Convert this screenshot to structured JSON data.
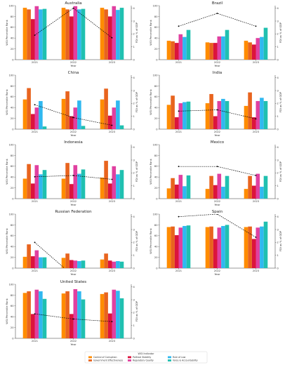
{
  "legend": {
    "title": "WGI Indicator",
    "entries": [
      {
        "name": "Control of Corruption",
        "color": "#ff8c00"
      },
      {
        "name": "Government Effectiveness",
        "color": "#e8641e"
      },
      {
        "name": "Political Stability",
        "color": "#dc143c"
      },
      {
        "name": "Regulatory Quality",
        "color": "#e040a0"
      },
      {
        "name": "Rule of Law",
        "color": "#30b8f0"
      },
      {
        "name": "Voice & Accountability",
        "color": "#20c0b0"
      }
    ]
  },
  "chart_data": [
    {
      "type": "bar",
      "title": "Australia",
      "categories": [
        "2021",
        "2022",
        "2023"
      ],
      "xlabel": "Year",
      "ylabel": "WGI Percentile Rank",
      "y2label": "FDI as % of GDP",
      "ylim": [
        0,
        100
      ],
      "y2lim": [
        0,
        4.2
      ],
      "yticks": [
        0,
        20,
        40,
        60,
        80,
        100
      ],
      "y2ticks": [
        0,
        1,
        2,
        3,
        4
      ],
      "series": [
        {
          "name": "Control of Corruption",
          "values": [
            96,
            96,
            96
          ]
        },
        {
          "name": "Government Effectiveness",
          "values": [
            93,
            93,
            93
          ]
        },
        {
          "name": "Political Stability",
          "values": [
            75,
            80,
            80
          ]
        },
        {
          "name": "Regulatory Quality",
          "values": [
            99,
            99,
            99
          ]
        },
        {
          "name": "Rule of Law",
          "values": [
            93,
            93,
            92
          ]
        },
        {
          "name": "Voice & Accountability",
          "values": [
            94,
            94,
            96
          ]
        }
      ],
      "fdi": [
        1.9,
        4.0,
        1.7
      ]
    },
    {
      "type": "bar",
      "title": "Brazil",
      "categories": [
        "2021",
        "2022",
        "2023"
      ],
      "xlabel": "Year",
      "ylabel": "WGI Percentile Rank",
      "y2label": "FDI as % of GDP",
      "ylim": [
        0,
        100
      ],
      "y2lim": [
        0,
        4.2
      ],
      "yticks": [
        0,
        20,
        40,
        60,
        80,
        100
      ],
      "y2ticks": [
        0,
        1,
        2,
        3,
        4
      ],
      "series": [
        {
          "name": "Control of Corruption",
          "values": [
            35,
            32,
            35
          ]
        },
        {
          "name": "Government Effectiveness",
          "values": [
            34,
            31,
            32
          ]
        },
        {
          "name": "Political Stability",
          "values": [
            31,
            31,
            28
          ]
        },
        {
          "name": "Regulatory Quality",
          "values": [
            47,
            43,
            40
          ]
        },
        {
          "name": "Rule of Law",
          "values": [
            42,
            43,
            42
          ]
        },
        {
          "name": "Voice & Accountability",
          "values": [
            55,
            55,
            59
          ]
        }
      ],
      "fdi": [
        2.6,
        3.6,
        2.6
      ]
    },
    {
      "type": "bar",
      "title": "China",
      "categories": [
        "2021",
        "2022",
        "2023"
      ],
      "xlabel": "Year",
      "ylabel": "WGI Percentile Rank",
      "y2label": "FDI as % of GDP",
      "ylim": [
        0,
        100
      ],
      "y2lim": [
        0,
        4.2
      ],
      "yticks": [
        0,
        20,
        40,
        60,
        80,
        100
      ],
      "y2ticks": [
        0,
        1,
        2,
        3,
        4
      ],
      "series": [
        {
          "name": "Control of Corruption",
          "values": [
            55,
            56,
            55
          ]
        },
        {
          "name": "Government Effectiveness",
          "values": [
            76,
            70,
            75
          ]
        },
        {
          "name": "Political Stability",
          "values": [
            28,
            24,
            25
          ]
        },
        {
          "name": "Regulatory Quality",
          "values": [
            40,
            40,
            40
          ]
        },
        {
          "name": "Rule of Law",
          "values": [
            52,
            53,
            53
          ]
        },
        {
          "name": "Voice & Accountability",
          "values": [
            5,
            6,
            7
          ]
        }
      ],
      "fdi": [
        1.9,
        0.9,
        0.3
      ]
    },
    {
      "type": "bar",
      "title": "India",
      "categories": [
        "2021",
        "2022",
        "2023"
      ],
      "xlabel": "Year",
      "ylabel": "WGI Percentile Rank",
      "y2label": "FDI as % of GDP",
      "ylim": [
        0,
        100
      ],
      "y2lim": [
        0,
        4.2
      ],
      "yticks": [
        0,
        20,
        40,
        60,
        80,
        100
      ],
      "y2ticks": [
        0,
        1,
        2,
        3,
        4
      ],
      "series": [
        {
          "name": "Control of Corruption",
          "values": [
            45,
            48,
            43
          ]
        },
        {
          "name": "Government Effectiveness",
          "values": [
            62,
            65,
            68
          ]
        },
        {
          "name": "Political Stability",
          "values": [
            22,
            24,
            22
          ]
        },
        {
          "name": "Regulatory Quality",
          "values": [
            48,
            52,
            52
          ]
        },
        {
          "name": "Rule of Law",
          "values": [
            50,
            56,
            58
          ]
        },
        {
          "name": "Voice & Accountability",
          "values": [
            51,
            52,
            52
          ]
        }
      ],
      "fdi": [
        1.4,
        1.5,
        0.8
      ]
    },
    {
      "type": "bar",
      "title": "Indonesia",
      "categories": [
        "2021",
        "2022",
        "2023"
      ],
      "xlabel": "Year",
      "ylabel": "WGI Percentile Rank",
      "y2label": "FDI as % of GDP",
      "ylim": [
        0,
        100
      ],
      "y2lim": [
        0,
        4.2
      ],
      "yticks": [
        0,
        20,
        40,
        60,
        80,
        100
      ],
      "y2ticks": [
        0,
        1,
        2,
        3,
        4
      ],
      "series": [
        {
          "name": "Control of Corruption",
          "values": [
            37,
            37,
            39
          ]
        },
        {
          "name": "Government Effectiveness",
          "values": [
            64,
            66,
            70
          ]
        },
        {
          "name": "Political Stability",
          "values": [
            28,
            27,
            28
          ]
        },
        {
          "name": "Regulatory Quality",
          "values": [
            62,
            62,
            60
          ]
        },
        {
          "name": "Rule of Law",
          "values": [
            45,
            46,
            45
          ]
        },
        {
          "name": "Voice & Accountability",
          "values": [
            53,
            54,
            53
          ]
        }
      ],
      "fdi": [
        1.7,
        1.8,
        1.5
      ]
    },
    {
      "type": "bar",
      "title": "Mexico",
      "categories": [
        "2021",
        "2022",
        "2023"
      ],
      "xlabel": "Year",
      "ylabel": "WGI Percentile Rank",
      "y2label": "FDI as % of GDP",
      "ylim": [
        0,
        100
      ],
      "y2lim": [
        0,
        4.2
      ],
      "yticks": [
        0,
        20,
        40,
        60,
        80,
        100
      ],
      "y2ticks": [
        0,
        1,
        2,
        3,
        4
      ],
      "series": [
        {
          "name": "Control of Corruption",
          "values": [
            19,
            18,
            18
          ]
        },
        {
          "name": "Government Effectiveness",
          "values": [
            38,
            42,
            42
          ]
        },
        {
          "name": "Political Stability",
          "values": [
            26,
            25,
            24
          ]
        },
        {
          "name": "Regulatory Quality",
          "values": [
            44,
            46,
            46
          ]
        },
        {
          "name": "Rule of Law",
          "values": [
            23,
            22,
            22
          ]
        },
        {
          "name": "Voice & Accountability",
          "values": [
            43,
            42,
            42
          ]
        }
      ],
      "fdi": [
        2.5,
        2.5,
        1.8
      ]
    },
    {
      "type": "bar",
      "title": "Russian Federation",
      "categories": [
        "2021",
        "2022",
        "2023"
      ],
      "xlabel": "Year",
      "ylabel": "WGI Percentile Rank",
      "y2label": "FDI as % of GDP",
      "ylim": [
        0,
        100
      ],
      "y2lim": [
        0,
        4.2
      ],
      "yticks": [
        0,
        20,
        40,
        60,
        80,
        100
      ],
      "y2ticks": [
        0,
        1,
        2,
        3,
        4
      ],
      "series": [
        {
          "name": "Control of Corruption",
          "values": [
            21,
            19,
            16
          ]
        },
        {
          "name": "Government Effectiveness",
          "values": [
            44,
            27,
            27
          ]
        },
        {
          "name": "Political Stability",
          "values": [
            22,
            15,
            14
          ]
        },
        {
          "name": "Regulatory Quality",
          "values": [
            33,
            14,
            12
          ]
        },
        {
          "name": "Rule of Law",
          "values": [
            20,
            13,
            13
          ]
        },
        {
          "name": "Voice & Accountability",
          "values": [
            20,
            14,
            12
          ]
        }
      ],
      "fdi": [
        2.0,
        -0.6,
        -0.6
      ]
    },
    {
      "type": "bar",
      "title": "Spain",
      "categories": [
        "2021",
        "2022",
        "2023"
      ],
      "xlabel": "Year",
      "ylabel": "WGI Percentile Rank",
      "y2label": "FDI as % of GDP",
      "ylim": [
        0,
        100
      ],
      "y2lim": [
        0,
        4.2
      ],
      "yticks": [
        0,
        20,
        40,
        60,
        80,
        100
      ],
      "y2ticks": [
        0,
        1,
        2,
        3,
        4
      ],
      "series": [
        {
          "name": "Control of Corruption",
          "values": [
            76,
            76,
            76
          ]
        },
        {
          "name": "Government Effectiveness",
          "values": [
            77,
            77,
            77
          ]
        },
        {
          "name": "Political Stability",
          "values": [
            61,
            54,
            54
          ]
        },
        {
          "name": "Regulatory Quality",
          "values": [
            75,
            75,
            75
          ]
        },
        {
          "name": "Rule of Law",
          "values": [
            78,
            78,
            77
          ]
        },
        {
          "name": "Voice & Accountability",
          "values": [
            79,
            80,
            86
          ]
        }
      ],
      "fdi": [
        4.0,
        4.2,
        2.4
      ]
    },
    {
      "type": "bar",
      "title": "United States",
      "categories": [
        "2021",
        "2022",
        "2023"
      ],
      "xlabel": "Year",
      "ylabel": "WGI Percentile Rank",
      "y2label": "FDI as % of GDP",
      "ylim": [
        0,
        100
      ],
      "y2lim": [
        0,
        4.2
      ],
      "yticks": [
        0,
        20,
        40,
        60,
        80,
        100
      ],
      "y2ticks": [
        0,
        1,
        2,
        3,
        4
      ],
      "series": [
        {
          "name": "Control of Corruption",
          "values": [
            84,
            83,
            82
          ]
        },
        {
          "name": "Government Effectiveness",
          "values": [
            87,
            87,
            85
          ]
        },
        {
          "name": "Political Stability",
          "values": [
            45,
            45,
            46
          ]
        },
        {
          "name": "Regulatory Quality",
          "values": [
            90,
            91,
            90
          ]
        },
        {
          "name": "Rule of Law",
          "values": [
            87,
            87,
            88
          ]
        },
        {
          "name": "Voice & Accountability",
          "values": [
            73,
            72,
            74
          ]
        }
      ],
      "fdi": [
        1.9,
        1.5,
        1.3
      ]
    }
  ]
}
